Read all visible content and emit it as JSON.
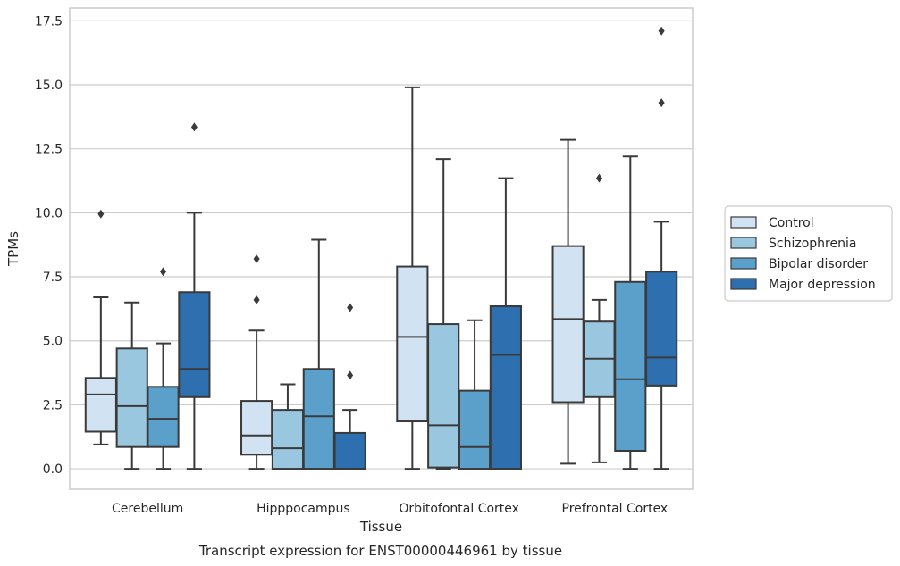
{
  "chart_data": {
    "type": "box",
    "title": "",
    "caption": "Transcript expression for ENST00000446961 by tissue",
    "xlabel": "Tissue",
    "ylabel": "TPMs",
    "ylim": [
      -0.8,
      18.0
    ],
    "yticks": [
      "0.0",
      "2.5",
      "5.0",
      "7.5",
      "10.0",
      "12.5",
      "15.0",
      "17.5"
    ],
    "ytick_values": [
      0,
      2.5,
      5,
      7.5,
      10,
      12.5,
      15,
      17.5
    ],
    "grid": "horizontal",
    "legend_position": "right",
    "categories": [
      "Cerebellum",
      "Hipppocampus",
      "Orbitofontal Cortex",
      "Prefrontal Cortex"
    ],
    "series": [
      {
        "name": "Control",
        "color": "#d1e2f2",
        "boxes": [
          {
            "whisker_low": 0.95,
            "q1": 1.45,
            "median": 2.9,
            "q3": 3.55,
            "whisker_high": 6.7,
            "outliers": [
              9.95
            ]
          },
          {
            "whisker_low": 0.0,
            "q1": 0.55,
            "median": 1.3,
            "q3": 2.65,
            "whisker_high": 5.4,
            "outliers": [
              6.6,
              8.2
            ]
          },
          {
            "whisker_low": 0.0,
            "q1": 1.85,
            "median": 5.15,
            "q3": 7.9,
            "whisker_high": 14.9,
            "outliers": []
          },
          {
            "whisker_low": 0.2,
            "q1": 2.6,
            "median": 5.85,
            "q3": 8.7,
            "whisker_high": 12.85,
            "outliers": []
          }
        ]
      },
      {
        "name": "Schizophrenia",
        "color": "#9ac7e0",
        "boxes": [
          {
            "whisker_low": 0.0,
            "q1": 0.85,
            "median": 2.45,
            "q3": 4.7,
            "whisker_high": 6.5,
            "outliers": []
          },
          {
            "whisker_low": 0.0,
            "q1": 0.0,
            "median": 0.8,
            "q3": 2.3,
            "whisker_high": 3.3,
            "outliers": []
          },
          {
            "whisker_low": 0.0,
            "q1": 0.05,
            "median": 1.7,
            "q3": 5.65,
            "whisker_high": 12.1,
            "outliers": []
          },
          {
            "whisker_low": 0.25,
            "q1": 2.8,
            "median": 4.3,
            "q3": 5.75,
            "whisker_high": 6.6,
            "outliers": [
              11.35
            ]
          }
        ]
      },
      {
        "name": "Bipolar disorder",
        "color": "#5aa0cb",
        "boxes": [
          {
            "whisker_low": 0.0,
            "q1": 0.85,
            "median": 1.95,
            "q3": 3.2,
            "whisker_high": 4.9,
            "outliers": [
              7.7
            ]
          },
          {
            "whisker_low": 0.0,
            "q1": 0.0,
            "median": 2.05,
            "q3": 3.9,
            "whisker_high": 8.95,
            "outliers": []
          },
          {
            "whisker_low": 0.0,
            "q1": 0.0,
            "median": 0.85,
            "q3": 3.05,
            "whisker_high": 5.8,
            "outliers": []
          },
          {
            "whisker_low": 0.0,
            "q1": 0.7,
            "median": 3.5,
            "q3": 7.3,
            "whisker_high": 12.2,
            "outliers": []
          }
        ]
      },
      {
        "name": "Major depression",
        "color": "#2e6fb0",
        "boxes": [
          {
            "whisker_low": 0.0,
            "q1": 2.8,
            "median": 3.9,
            "q3": 6.9,
            "whisker_high": 10.0,
            "outliers": [
              13.35
            ]
          },
          {
            "whisker_low": 0.0,
            "q1": 0.0,
            "median": 0.0,
            "q3": 1.4,
            "whisker_high": 2.3,
            "outliers": [
              3.65,
              6.3
            ]
          },
          {
            "whisker_low": 0.0,
            "q1": 0.0,
            "median": 4.45,
            "q3": 6.35,
            "whisker_high": 11.35,
            "outliers": []
          },
          {
            "whisker_low": 0.0,
            "q1": 3.25,
            "median": 4.35,
            "q3": 7.7,
            "whisker_high": 9.65,
            "outliers": [
              14.3,
              17.1
            ]
          }
        ]
      }
    ]
  }
}
